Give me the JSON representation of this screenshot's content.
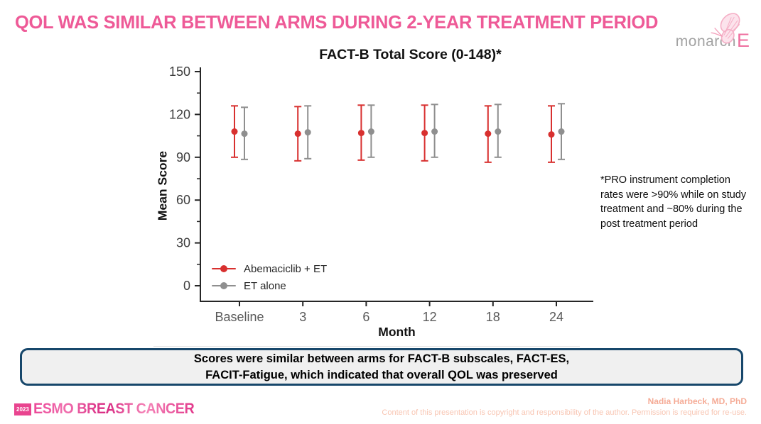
{
  "header": {
    "title": "QOL WAS SIMILAR BETWEEN ARMS DURING 2-YEAR TREATMENT PERIOD",
    "logo": {
      "monarch": "monarch",
      "e": "E"
    }
  },
  "chart_data": {
    "type": "errorbar",
    "title": "FACT-B Total Score (0-148)*",
    "xlabel": "Month",
    "ylabel": "Mean Score",
    "categories": [
      "Baseline",
      "3",
      "6",
      "12",
      "18",
      "24"
    ],
    "yticks": [
      0,
      30,
      60,
      90,
      120,
      150
    ],
    "ylim": [
      0,
      153
    ],
    "grid": false,
    "legend_position": "inside-bottom-left",
    "series": [
      {
        "name": "Abemaciclib + ET",
        "color": "#d8302f",
        "means": [
          108,
          106.5,
          107,
          107,
          106.5,
          106
        ],
        "lower": [
          90,
          87.5,
          88,
          87.5,
          86.5,
          86.5
        ],
        "upper": [
          126,
          125.5,
          126.5,
          126.5,
          126,
          126
        ]
      },
      {
        "name": "ET alone",
        "color": "#8f8f8f",
        "means": [
          106.5,
          107.5,
          108,
          108,
          108,
          108
        ],
        "lower": [
          88.5,
          89,
          90,
          90,
          90,
          88.5
        ],
        "upper": [
          125,
          126,
          126.5,
          127,
          127,
          127.5
        ]
      }
    ]
  },
  "note": {
    "text": "*PRO instrument completion\nrates were >90% while on study\ntreatment and ~80% during the\npost treatment period"
  },
  "conclusion": {
    "text": "Scores were similar between arms for FACT-B subscales, FACT-ES,\nFACIT-Fatigue, which indicated that overall QOL was preserved"
  },
  "footer": {
    "year": "2023",
    "congress": "ESMO BREAST CANCER",
    "author": "Nadia Harbeck, MD, PhD",
    "copyright": "Content of this presentation is copyright and responsibility of the author. Permission is required for re-use."
  },
  "colors": {
    "title_pink": "#ee5a97",
    "abemaciclib_red": "#d8302f",
    "et_gray": "#8f8f8f",
    "box_border_navy": "#17476b",
    "esmo_pink": "#e9448f",
    "author_salmon": "#f5ab96",
    "copyright_salmon": "#f8c5b2"
  }
}
